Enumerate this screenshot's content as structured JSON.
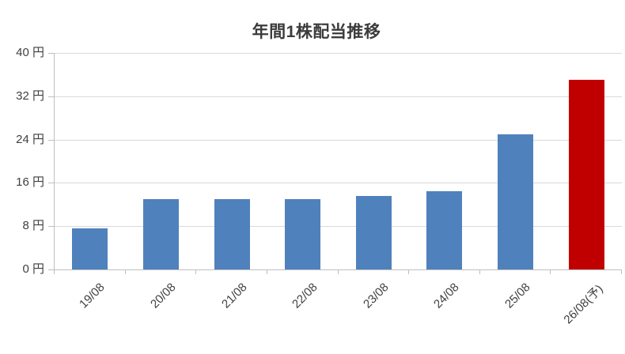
{
  "chart_data": {
    "type": "bar",
    "title": "年間1株配当推移",
    "categories": [
      "19/08",
      "20/08",
      "21/08",
      "22/08",
      "23/08",
      "24/08",
      "25/08",
      "26/08(予)"
    ],
    "values": [
      7.6,
      13,
      13,
      13,
      13.6,
      14.5,
      25,
      35
    ],
    "unit": "円",
    "xlabel": "",
    "ylabel": "",
    "ylim": [
      0,
      40
    ],
    "yticks": [
      0,
      8,
      16,
      24,
      32,
      40
    ],
    "ytick_labels": [
      "0 円",
      "8 円",
      "16 円",
      "24 円",
      "32 円",
      "40 円"
    ],
    "grid": true,
    "legend": false,
    "x_label_rotation_deg": -45,
    "bar_colors": [
      "#4F81BD",
      "#4F81BD",
      "#4F81BD",
      "#4F81BD",
      "#4F81BD",
      "#4F81BD",
      "#4F81BD",
      "#C00000"
    ],
    "colors": {
      "bar_default": "#4F81BD",
      "bar_forecast": "#C00000",
      "gridline": "#D9D9D9",
      "axis": "#BFBFBF",
      "text": "#3F3F3F",
      "title_text": "#3B3B3B",
      "background": "#FFFFFF"
    },
    "notes": "last bar is forecast (予) highlighted red"
  }
}
